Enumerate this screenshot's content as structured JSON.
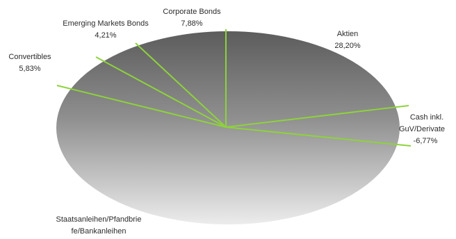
{
  "chart_data": {
    "type": "pie",
    "style": "3d-ellipse",
    "title": "",
    "series_color": "#8dd33a",
    "slices": [
      {
        "name": "Aktien",
        "value": 28.2,
        "value_label": "28,20%"
      },
      {
        "name": "Cash inkl. GuV/Derivate",
        "value": -6.77,
        "value_label": "-6,77%"
      },
      {
        "name": "Staatsanleihen/Pfandbriefe/Bankanleihen",
        "value": null,
        "value_label": ""
      },
      {
        "name": "Convertibles",
        "value": 5.83,
        "value_label": "5,83%"
      },
      {
        "name": "Emerging Markets Bonds",
        "value": 4.21,
        "value_label": "4,21%"
      },
      {
        "name": "Corporate Bonds",
        "value": 7.88,
        "value_label": "7,88%"
      }
    ],
    "labels": {
      "corporate_name": "Corporate Bonds",
      "corporate_value": "7,88%",
      "emerging_name": "Emerging Markets Bonds",
      "emerging_value": "4,21%",
      "aktien_name": "Aktien",
      "aktien_value": "28,20%",
      "convertibles_name": "Convertibles",
      "convertibles_value": "5,83%",
      "cash_name_1": "Cash inkl.",
      "cash_name_2": "GuV/Derivate",
      "cash_value": "-6,77%",
      "staat_name_1": "Staatsanleihen/Pfandbrie",
      "staat_name_2": "fe/Bankanleihen"
    }
  }
}
